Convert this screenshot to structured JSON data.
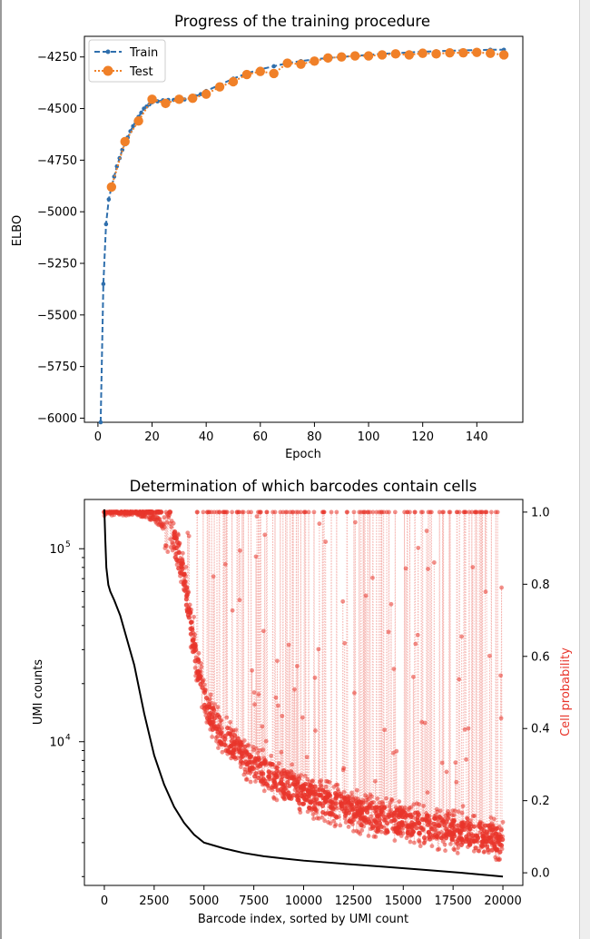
{
  "chart_data": [
    {
      "type": "line",
      "title": "Progress of the training procedure",
      "xlabel": "Epoch",
      "ylabel": "ELBO",
      "xlim": [
        -5,
        157
      ],
      "ylim": [
        -6020,
        -4150
      ],
      "grid": false,
      "legend_position": "upper-left",
      "x_ticks": [
        "0",
        "20",
        "40",
        "60",
        "80",
        "100",
        "120",
        "140"
      ],
      "y_ticks": [
        "−4250",
        "−4500",
        "−4750",
        "−5000",
        "−5250",
        "−5500",
        "−5750",
        "−6000"
      ],
      "colors": {
        "train": "#2f6fad",
        "test": "#f08028"
      },
      "series": [
        {
          "name": "Train",
          "style": "dashed line with small dot markers",
          "x": [
            1,
            2,
            3,
            4,
            5,
            6,
            7,
            8,
            9,
            10,
            11,
            12,
            13,
            14,
            15,
            16,
            17,
            18,
            19,
            20,
            22,
            24,
            26,
            28,
            30,
            32,
            34,
            36,
            38,
            40,
            45,
            50,
            55,
            60,
            65,
            70,
            75,
            80,
            85,
            90,
            95,
            100,
            105,
            110,
            115,
            120,
            125,
            130,
            135,
            140,
            145,
            150
          ],
          "values": [
            -6020,
            -5350,
            -5060,
            -4940,
            -4880,
            -4830,
            -4780,
            -4740,
            -4700,
            -4670,
            -4640,
            -4610,
            -4585,
            -4560,
            -4540,
            -4520,
            -4500,
            -4490,
            -4480,
            -4470,
            -4465,
            -4460,
            -4458,
            -4458,
            -4460,
            -4456,
            -4450,
            -4440,
            -4430,
            -4415,
            -4385,
            -4355,
            -4330,
            -4310,
            -4295,
            -4280,
            -4270,
            -4262,
            -4255,
            -4250,
            -4245,
            -4240,
            -4235,
            -4232,
            -4228,
            -4225,
            -4222,
            -4220,
            -4218,
            -4217,
            -4215,
            -4215
          ]
        },
        {
          "name": "Test",
          "style": "dotted line with large circle markers",
          "x": [
            5,
            10,
            15,
            20,
            25,
            30,
            35,
            40,
            45,
            50,
            55,
            60,
            65,
            70,
            75,
            80,
            85,
            90,
            95,
            100,
            105,
            110,
            115,
            120,
            125,
            130,
            135,
            140,
            145,
            150
          ],
          "values": [
            -4880,
            -4660,
            -4560,
            -4455,
            -4475,
            -4455,
            -4450,
            -4430,
            -4395,
            -4370,
            -4335,
            -4320,
            -4330,
            -4280,
            -4285,
            -4270,
            -4255,
            -4250,
            -4245,
            -4245,
            -4240,
            -4235,
            -4240,
            -4232,
            -4235,
            -4230,
            -4230,
            -4228,
            -4232,
            -4240
          ]
        }
      ]
    },
    {
      "type": "scatter",
      "title": "Determination of which barcodes contain cells",
      "xlabel": "Barcode index, sorted by UMI count",
      "ylabel": "UMI counts",
      "y2label": "Cell probability",
      "xlim": [
        -1000,
        21000
      ],
      "ylim_log": [
        1800,
        180000
      ],
      "y2lim": [
        -0.035,
        1.035
      ],
      "y_scale": "log",
      "grid": false,
      "x_ticks": [
        "0",
        "2500",
        "5000",
        "7500",
        "10000",
        "12500",
        "15000",
        "17500",
        "20000"
      ],
      "y_ticks_log": [
        "10",
        "10"
      ],
      "y_tick_exponents": [
        "5",
        "4"
      ],
      "y2_ticks": [
        "0.0",
        "0.2",
        "0.4",
        "0.6",
        "0.8",
        "1.0"
      ],
      "colors": {
        "umi": "#000000",
        "probability": "#e8342a",
        "probability_light": "#f4a8a3"
      },
      "series": [
        {
          "name": "UMI counts",
          "axis": "left",
          "x": [
            0,
            50,
            100,
            200,
            300,
            500,
            800,
            1000,
            1500,
            2000,
            2500,
            3000,
            3500,
            4000,
            4500,
            5000,
            6000,
            7000,
            8000,
            9000,
            10000,
            12000,
            14000,
            16000,
            18000,
            20000
          ],
          "values": [
            160000,
            110000,
            80000,
            65000,
            60000,
            54000,
            45000,
            38000,
            25000,
            14000,
            8500,
            6000,
            4600,
            3800,
            3300,
            3000,
            2800,
            2650,
            2550,
            2480,
            2420,
            2330,
            2250,
            2170,
            2090,
            2000
          ]
        },
        {
          "name": "Cell probability",
          "axis": "right",
          "x": [
            0,
            1000,
            2000,
            2500,
            3000,
            3500,
            4000,
            4500,
            5000,
            5500,
            6000,
            7000,
            8000,
            9000,
            10000,
            12000,
            14000,
            16000,
            18000,
            20000
          ],
          "values": [
            1.0,
            1.0,
            0.995,
            0.985,
            0.96,
            0.92,
            0.82,
            0.62,
            0.48,
            0.42,
            0.38,
            0.32,
            0.28,
            0.25,
            0.22,
            0.18,
            0.15,
            0.13,
            0.11,
            0.09
          ]
        }
      ]
    }
  ]
}
